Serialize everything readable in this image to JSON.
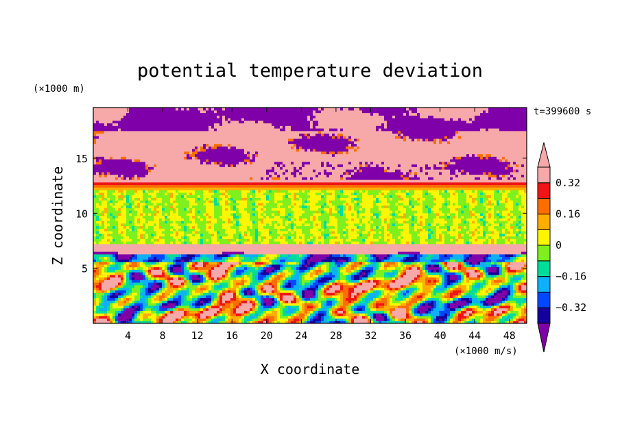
{
  "chart_data": {
    "type": "heatmap",
    "title": "potential temperature deviation",
    "xlabel": "X coordinate",
    "ylabel": "Z coordinate",
    "x_unit": "(×1000 m/s)",
    "y_unit": "(×1000 m)",
    "time_label": "t=399600 s",
    "xlim": [
      0,
      50
    ],
    "ylim": [
      0,
      19.6
    ],
    "x_ticks": [
      4,
      8,
      12,
      16,
      20,
      24,
      28,
      32,
      36,
      40,
      44,
      48
    ],
    "y_ticks": [
      5,
      10,
      15
    ],
    "colorbar": {
      "levels": [
        -0.4,
        -0.32,
        -0.24,
        -0.16,
        -0.08,
        0,
        0.08,
        0.16,
        0.24,
        0.32,
        0.4
      ],
      "colors": [
        "#7f00a8",
        "#15009a",
        "#0048ff",
        "#0fb0f5",
        "#00dd9b",
        "#7ff01e",
        "#fff700",
        "#ffae00",
        "#fb6e00",
        "#ef1515",
        "#f7a8a8"
      ],
      "tick_labels": [
        "0.32",
        "0.16",
        "0",
        "−0.16",
        "−0.32"
      ],
      "tick_values": [
        0.32,
        0.16,
        0,
        -0.16,
        -0.32
      ]
    },
    "bands": [
      {
        "z_range": [
          0,
          6.2
        ],
        "pattern": "convective plumes, mixed values from -0.4 to 0.4"
      },
      {
        "z_range": [
          6.2,
          7.3
        ],
        "pattern": "strong positive layer (0.4 and above) with purple intrusions"
      },
      {
        "z_range": [
          7.3,
          12.2
        ],
        "pattern": "near zero (green, -0.08 to 0.08)"
      },
      {
        "z_range": [
          12.2,
          13.0
        ],
        "pattern": "positive gradient layer (0.16 to 0.4)"
      },
      {
        "z_range": [
          13.0,
          19.6
        ],
        "pattern": "alternating strong positive (pink) and strong negative (purple) patches"
      }
    ]
  }
}
